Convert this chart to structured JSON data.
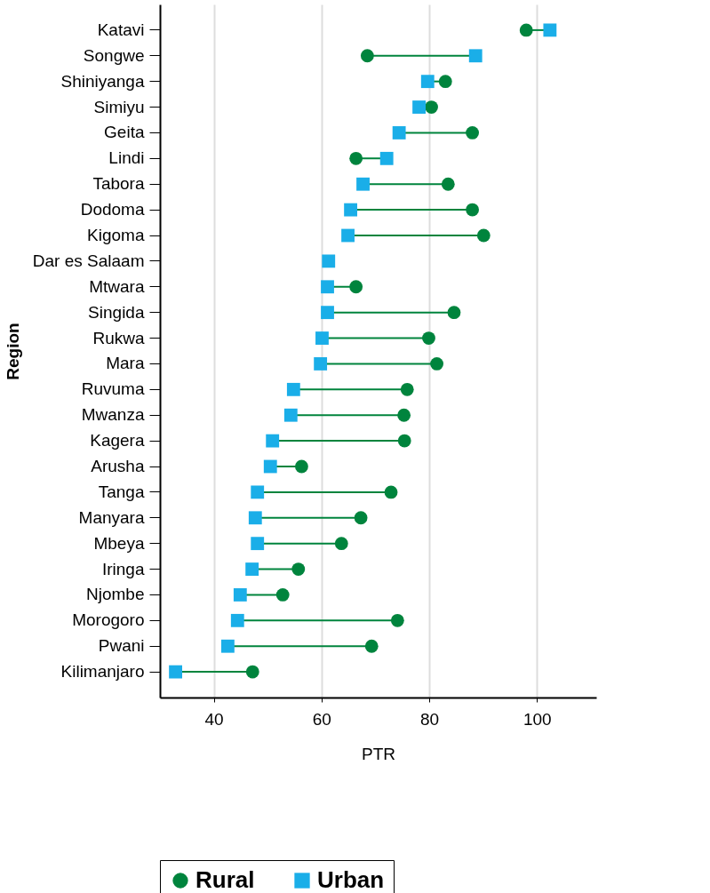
{
  "chart_data": {
    "type": "scatter",
    "xlabel": "PTR",
    "ylabel": "Region",
    "categories": [
      "Katavi",
      "Songwe",
      "Shiniyanga",
      "Simiyu",
      "Geita",
      "Lindi",
      "Tabora",
      "Dodoma",
      "Kigoma",
      "Dar es Salaam",
      "Mtwara",
      "Singida",
      "Rukwa",
      "Mara",
      "Ruvuma",
      "Mwanza",
      "Kagera",
      "Arusha",
      "Tanga",
      "Manyara",
      "Mbeya",
      "Iringa",
      "Njombe",
      "Morogoro",
      "Pwani",
      "Kilimanjaro"
    ],
    "series": [
      {
        "name": "Rural",
        "color": "#00843d",
        "marker": "circle",
        "values": [
          98.0,
          68.5,
          83.0,
          80.4,
          88.0,
          66.4,
          83.5,
          88.0,
          90.1,
          null,
          66.4,
          84.6,
          79.9,
          81.4,
          75.9,
          75.3,
          75.4,
          56.3,
          72.9,
          67.3,
          63.7,
          55.7,
          52.8,
          74.1,
          69.3,
          47.2
        ]
      },
      {
        "name": "Urban",
        "color": "#1aaee8",
        "marker": "square",
        "values": [
          102.4,
          88.6,
          79.7,
          78.1,
          74.4,
          72.1,
          67.7,
          65.4,
          64.9,
          61.3,
          61.1,
          61.1,
          60.1,
          59.8,
          54.8,
          54.3,
          50.9,
          50.5,
          48.1,
          47.7,
          48.1,
          47.1,
          44.9,
          44.4,
          42.6,
          32.9
        ]
      }
    ],
    "xlim": [
      30,
      111
    ],
    "xticks": [
      40,
      60,
      80,
      100
    ],
    "grid": "x",
    "legend": "bottom",
    "orientation": "horizontal"
  }
}
